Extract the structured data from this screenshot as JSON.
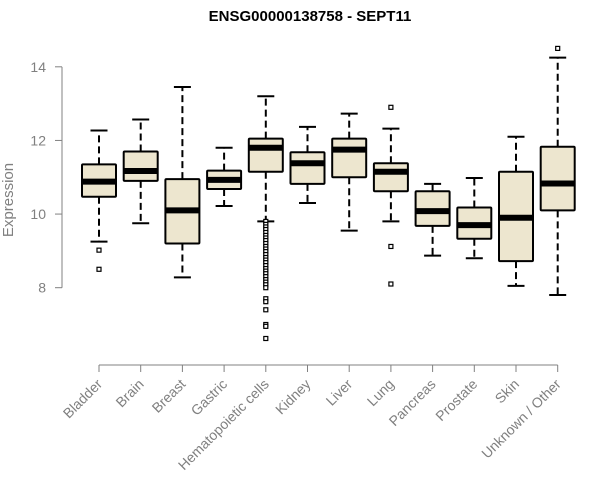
{
  "chart_data": {
    "type": "boxplot",
    "title": "ENSG00000138758 - SEPT11",
    "xlabel": "",
    "ylabel": "Expression",
    "ylim": [
      5.9,
      15.0
    ],
    "yticks": [
      8,
      10,
      12,
      14
    ],
    "box_fill": "#ede6cf",
    "categories": [
      "Bladder",
      "Brain",
      "Breast",
      "Gastric",
      "Hematopoietic cells",
      "Kidney",
      "Liver",
      "Lung",
      "Pancreas",
      "Prostate",
      "Skin",
      "Unknown / Other"
    ],
    "boxes": [
      {
        "name": "Bladder",
        "whisker_low": 9.25,
        "q1": 10.47,
        "median": 10.88,
        "q3": 11.35,
        "whisker_high": 12.27,
        "outliers": [
          9.02,
          8.5
        ]
      },
      {
        "name": "Brain",
        "whisker_low": 9.75,
        "q1": 10.9,
        "median": 11.17,
        "q3": 11.7,
        "whisker_high": 12.57,
        "outliers": []
      },
      {
        "name": "Breast",
        "whisker_low": 8.28,
        "q1": 9.2,
        "median": 10.1,
        "q3": 10.95,
        "whisker_high": 13.45,
        "outliers": []
      },
      {
        "name": "Gastric",
        "whisker_low": 10.22,
        "q1": 10.68,
        "median": 10.93,
        "q3": 11.18,
        "whisker_high": 11.8,
        "outliers": []
      },
      {
        "name": "Hematopoietic cells",
        "whisker_low": 9.8,
        "q1": 11.15,
        "median": 11.8,
        "q3": 12.05,
        "whisker_high": 13.2,
        "outliers": [
          9.8,
          9.72,
          9.65,
          9.58,
          9.5,
          9.42,
          9.35,
          9.28,
          9.2,
          9.12,
          9.05,
          8.98,
          8.9,
          8.82,
          8.75,
          8.68,
          8.6,
          8.52,
          8.45,
          8.38,
          8.3,
          8.22,
          8.15,
          8.08,
          8.0,
          7.7,
          7.62,
          7.4,
          7.0,
          6.95,
          6.62
        ]
      },
      {
        "name": "Kidney",
        "whisker_low": 10.3,
        "q1": 10.82,
        "median": 11.38,
        "q3": 11.68,
        "whisker_high": 12.37,
        "outliers": []
      },
      {
        "name": "Liver",
        "whisker_low": 9.55,
        "q1": 11.0,
        "median": 11.75,
        "q3": 12.05,
        "whisker_high": 12.73,
        "outliers": []
      },
      {
        "name": "Lung",
        "whisker_low": 9.8,
        "q1": 10.62,
        "median": 11.15,
        "q3": 11.38,
        "whisker_high": 12.32,
        "outliers": [
          12.9,
          9.12,
          8.1
        ]
      },
      {
        "name": "Pancreas",
        "whisker_low": 8.87,
        "q1": 9.68,
        "median": 10.08,
        "q3": 10.62,
        "whisker_high": 10.82,
        "outliers": []
      },
      {
        "name": "Prostate",
        "whisker_low": 8.8,
        "q1": 9.33,
        "median": 9.7,
        "q3": 10.18,
        "whisker_high": 10.98,
        "outliers": []
      },
      {
        "name": "Skin",
        "whisker_low": 8.05,
        "q1": 8.72,
        "median": 9.9,
        "q3": 11.15,
        "whisker_high": 12.1,
        "outliers": []
      },
      {
        "name": "Unknown / Other",
        "whisker_low": 7.8,
        "q1": 10.1,
        "median": 10.83,
        "q3": 11.83,
        "whisker_high": 14.25,
        "outliers": [
          14.5
        ]
      }
    ]
  }
}
